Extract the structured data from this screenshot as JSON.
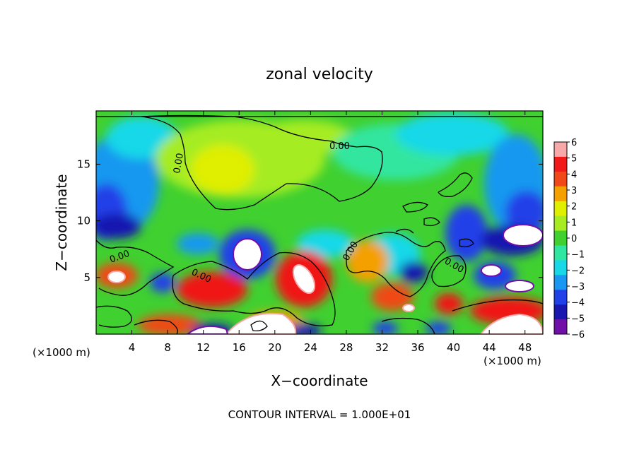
{
  "chart_data": {
    "type": "heatmap",
    "title": "zonal velocity",
    "xlabel": "X−coordinate",
    "ylabel": "Z−coordinate",
    "x_unit_left": "(×1000 m)",
    "x_unit_right": "(×1000 m)",
    "x_ticks": [
      4,
      8,
      12,
      16,
      20,
      24,
      28,
      32,
      36,
      40,
      44,
      48
    ],
    "y_ticks": [
      5,
      10,
      15
    ],
    "xlim": [
      0,
      50
    ],
    "ylim": [
      0,
      19.7
    ],
    "colorbar": {
      "ticks": [
        6,
        5,
        4,
        3,
        2,
        1,
        0,
        -1,
        -2,
        -3,
        -4,
        -5,
        -6
      ],
      "tick_labels": [
        "6",
        "5",
        "4",
        "3",
        "2",
        "1",
        "0",
        "−1",
        "−2",
        "−3",
        "−4",
        "−5",
        "−6"
      ],
      "colors": [
        "#f7a8a8",
        "#f01818",
        "#f04818",
        "#f4a000",
        "#e0ee00",
        "#a6ec20",
        "#40d030",
        "#30e6a0",
        "#18d8e8",
        "#1898f0",
        "#2040e8",
        "#1818b0",
        "#7010a8"
      ]
    },
    "contour_label": "0.00",
    "footer": "CONTOUR INTERVAL = 1.000E+01"
  }
}
